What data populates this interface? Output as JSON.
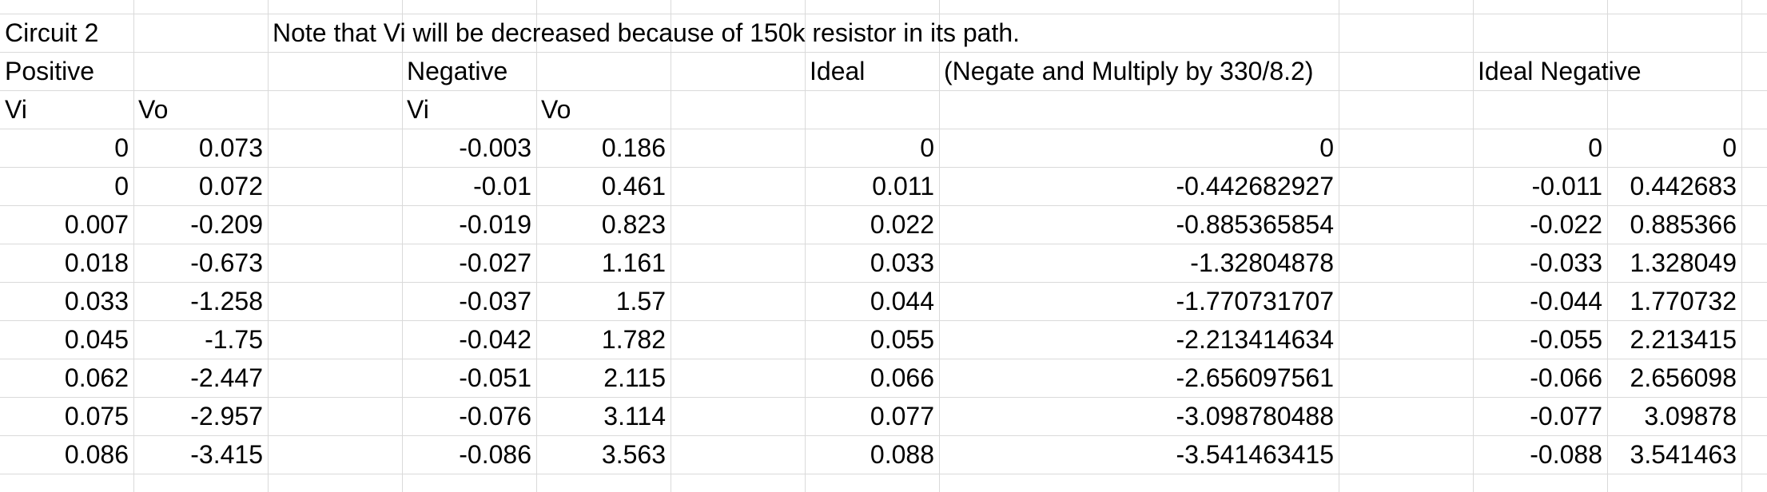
{
  "sheet": {
    "title": "Circuit 2",
    "note": "Note that Vi will be decreased because of 150k resistor in its path.",
    "headers": {
      "positive": "Positive",
      "negative": "Negative",
      "ideal": "Ideal",
      "ideal_note": "(Negate and Multiply by 330/8.2)",
      "ideal_negative": "Ideal Negative",
      "pos_vi": "Vi",
      "pos_vo": "Vo",
      "neg_vi": "Vi",
      "neg_vo": "Vo"
    },
    "rows": [
      {
        "pos_vi": "0",
        "pos_vo": "0.073",
        "neg_vi": "-0.003",
        "neg_vo": "0.186",
        "ideal_vi": "0",
        "ideal_vo": "0",
        "idneg_vi": "0",
        "idneg_vo": "0"
      },
      {
        "pos_vi": "0",
        "pos_vo": "0.072",
        "neg_vi": "-0.01",
        "neg_vo": "0.461",
        "ideal_vi": "0.011",
        "ideal_vo": "-0.442682927",
        "idneg_vi": "-0.011",
        "idneg_vo": "0.442683"
      },
      {
        "pos_vi": "0.007",
        "pos_vo": "-0.209",
        "neg_vi": "-0.019",
        "neg_vo": "0.823",
        "ideal_vi": "0.022",
        "ideal_vo": "-0.885365854",
        "idneg_vi": "-0.022",
        "idneg_vo": "0.885366"
      },
      {
        "pos_vi": "0.018",
        "pos_vo": "-0.673",
        "neg_vi": "-0.027",
        "neg_vo": "1.161",
        "ideal_vi": "0.033",
        "ideal_vo": "-1.32804878",
        "idneg_vi": "-0.033",
        "idneg_vo": "1.328049"
      },
      {
        "pos_vi": "0.033",
        "pos_vo": "-1.258",
        "neg_vi": "-0.037",
        "neg_vo": "1.57",
        "ideal_vi": "0.044",
        "ideal_vo": "-1.770731707",
        "idneg_vi": "-0.044",
        "idneg_vo": "1.770732"
      },
      {
        "pos_vi": "0.045",
        "pos_vo": "-1.75",
        "neg_vi": "-0.042",
        "neg_vo": "1.782",
        "ideal_vi": "0.055",
        "ideal_vo": "-2.213414634",
        "idneg_vi": "-0.055",
        "idneg_vo": "2.213415"
      },
      {
        "pos_vi": "0.062",
        "pos_vo": "-2.447",
        "neg_vi": "-0.051",
        "neg_vo": "2.115",
        "ideal_vi": "0.066",
        "ideal_vo": "-2.656097561",
        "idneg_vi": "-0.066",
        "idneg_vo": "2.656098"
      },
      {
        "pos_vi": "0.075",
        "pos_vo": "-2.957",
        "neg_vi": "-0.076",
        "neg_vo": "3.114",
        "ideal_vi": "0.077",
        "ideal_vo": "-3.098780488",
        "idneg_vi": "-0.077",
        "idneg_vo": "3.09878"
      },
      {
        "pos_vi": "0.086",
        "pos_vo": "-3.415",
        "neg_vi": "-0.086",
        "neg_vo": "3.563",
        "ideal_vi": "0.088",
        "ideal_vo": "-3.541463415",
        "idneg_vi": "-0.088",
        "idneg_vo": "3.541463"
      }
    ]
  }
}
